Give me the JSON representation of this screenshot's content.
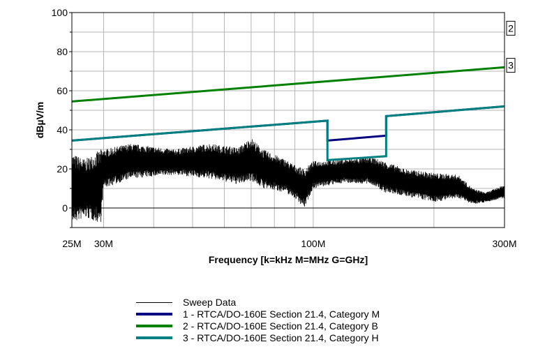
{
  "chart_data": {
    "type": "line",
    "xlabel": "Frequency [k=kHz M=MHz G=GHz]",
    "ylabel": "dBµV/m",
    "xscale": "log",
    "xlim_mhz": [
      25,
      300
    ],
    "ylim": [
      -10,
      100
    ],
    "grid": true,
    "x_tick_labels": [
      {
        "mhz": 25,
        "label": "25M"
      },
      {
        "mhz": 30,
        "label": "30M"
      },
      {
        "mhz": 100,
        "label": "100M"
      },
      {
        "mhz": 300,
        "label": "300M"
      }
    ],
    "y_ticks": [
      0,
      20,
      40,
      60,
      80,
      100
    ],
    "y_tick_labels": [
      "0",
      "20",
      "40",
      "60",
      "80",
      "100"
    ],
    "series": [
      {
        "name": "Sweep Data",
        "color": "#000000",
        "kind": "noise",
        "envelope_mhz": [
          25,
          27,
          29.5,
          30,
          35,
          45,
          55,
          65,
          70,
          75,
          85,
          90,
          95,
          100,
          120,
          140,
          150,
          170,
          200,
          230,
          250,
          270,
          300
        ],
        "envelope_low": [
          -8,
          -5,
          -8,
          10,
          15,
          17,
          15,
          12,
          14,
          10,
          8,
          5,
          0,
          10,
          13,
          12,
          8,
          6,
          3,
          5,
          2,
          3,
          5
        ],
        "envelope_high": [
          28,
          25,
          30,
          30,
          33,
          30,
          33,
          31,
          36,
          30,
          25,
          22,
          20,
          24,
          25,
          26,
          24,
          20,
          18,
          17,
          10,
          8,
          12
        ]
      },
      {
        "name": "1 - RTCA/DO-160E Section 21.4, Category M",
        "color": "#000080",
        "points": [
          [
            25,
            34.5
          ],
          [
            108.5,
            44.7
          ],
          [
            108.5,
            34.5
          ],
          [
            152,
            37
          ],
          [
            152,
            47
          ],
          [
            300,
            52
          ]
        ]
      },
      {
        "name": "2 - RTCA/DO-160E Section 21.4, Category B",
        "color": "#008000",
        "points": [
          [
            25,
            54.5
          ],
          [
            300,
            72
          ]
        ]
      },
      {
        "name": "3 - RTCA/DO-160E Section 21.4, Category H",
        "color": "#008080",
        "points": [
          [
            25,
            34.5
          ],
          [
            108.5,
            44.7
          ],
          [
            108.5,
            24.5
          ],
          [
            152,
            26.5
          ],
          [
            152,
            47
          ],
          [
            300,
            52
          ]
        ]
      }
    ],
    "line_markers": [
      {
        "label": "2",
        "value": 92
      },
      {
        "label": "3",
        "value": 73
      }
    ]
  }
}
